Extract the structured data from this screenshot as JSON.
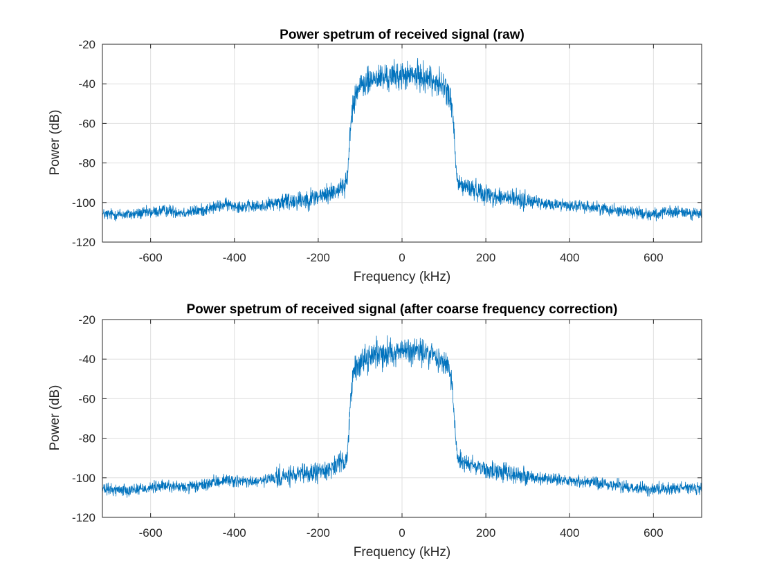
{
  "chart_data": [
    {
      "type": "line",
      "title": "Power spetrum of received signal (raw)",
      "xlabel": "Frequency (kHz)",
      "ylabel": "Power (dB)",
      "xlim": [
        -715,
        715
      ],
      "ylim": [
        -120,
        -20
      ],
      "xticks": [
        -600,
        -400,
        -200,
        0,
        200,
        400,
        600
      ],
      "yticks": [
        -120,
        -100,
        -80,
        -60,
        -40,
        -20
      ],
      "grid": true,
      "line_color": "#0072BD",
      "series": [
        {
          "x": [
            -715,
            -650,
            -600,
            -560,
            -520,
            -480,
            -440,
            -420,
            -380,
            -340,
            -300,
            -260,
            -220,
            -180,
            -150,
            -140,
            -132,
            -128,
            -124,
            -118,
            -110,
            -100,
            -90,
            -80,
            -60,
            -40,
            -20,
            0,
            20,
            40,
            60,
            80,
            90,
            100,
            110,
            118,
            124,
            128,
            132,
            140,
            150,
            180,
            220,
            260,
            300,
            340,
            380,
            420,
            440,
            480,
            520,
            560,
            600,
            640,
            680,
            715
          ],
          "y": [
            -106,
            -106,
            -105,
            -104,
            -105,
            -104,
            -102,
            -101,
            -102,
            -102,
            -100,
            -99,
            -98,
            -96,
            -93,
            -92,
            -90,
            -80,
            -65,
            -50,
            -44,
            -42,
            -40,
            -39,
            -37,
            -37,
            -36,
            -36,
            -36,
            -36,
            -37,
            -39,
            -40,
            -42,
            -44,
            -50,
            -65,
            -80,
            -90,
            -91,
            -92,
            -94,
            -97,
            -98,
            -99,
            -101,
            -101,
            -102,
            -102,
            -103,
            -104,
            -105,
            -106,
            -105,
            -105,
            -106
          ]
        }
      ]
    },
    {
      "type": "line",
      "title": "Power spetrum of received signal (after coarse frequency correction)",
      "xlabel": "Frequency (kHz)",
      "ylabel": "Power (dB)",
      "xlim": [
        -715,
        715
      ],
      "ylim": [
        -120,
        -20
      ],
      "xticks": [
        -600,
        -400,
        -200,
        0,
        200,
        400,
        600
      ],
      "yticks": [
        -120,
        -100,
        -80,
        -60,
        -40,
        -20
      ],
      "grid": true,
      "line_color": "#0072BD",
      "series": [
        {
          "x": [
            -715,
            -650,
            -600,
            -560,
            -520,
            -480,
            -440,
            -420,
            -380,
            -340,
            -300,
            -260,
            -220,
            -180,
            -150,
            -140,
            -132,
            -128,
            -124,
            -118,
            -110,
            -100,
            -90,
            -80,
            -60,
            -40,
            -20,
            0,
            20,
            40,
            60,
            80,
            90,
            100,
            110,
            118,
            124,
            128,
            132,
            140,
            150,
            180,
            220,
            260,
            300,
            340,
            380,
            420,
            440,
            480,
            520,
            560,
            600,
            640,
            680,
            715
          ],
          "y": [
            -106,
            -106,
            -105,
            -104,
            -105,
            -104,
            -102,
            -101,
            -102,
            -102,
            -100,
            -99,
            -98,
            -96,
            -93,
            -92,
            -90,
            -80,
            -65,
            -50,
            -44,
            -42,
            -40,
            -39,
            -37,
            -37,
            -36,
            -36,
            -36,
            -36,
            -37,
            -39,
            -40,
            -42,
            -44,
            -50,
            -65,
            -80,
            -90,
            -91,
            -92,
            -94,
            -97,
            -98,
            -99,
            -101,
            -101,
            -102,
            -102,
            -103,
            -104,
            -105,
            -106,
            -105,
            -105,
            -106
          ]
        }
      ]
    }
  ]
}
